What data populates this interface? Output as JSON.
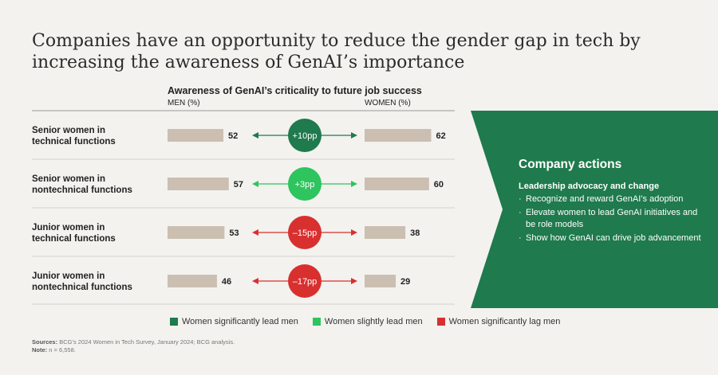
{
  "title": "Companies have an opportunity to reduce the gender gap in tech by increasing the awareness of GenAI’s importance",
  "chart_data": {
    "type": "bar",
    "title": "Awareness of GenAI’s criticality to future job success",
    "men_label": "MEN (%)",
    "women_label": "WOMEN (%)",
    "categories": [
      "Senior women in technical functions",
      "Senior women in nontechnical functions",
      "Junior women in technical functions",
      "Junior women in nontechnical functions"
    ],
    "series": [
      {
        "name": "MEN (%)",
        "values": [
          52,
          57,
          53,
          46
        ]
      },
      {
        "name": "WOMEN (%)",
        "values": [
          62,
          60,
          38,
          29
        ]
      }
    ],
    "gaps": [
      {
        "label": "+10pp",
        "status": "lead"
      },
      {
        "label": "+3pp",
        "status": "slight"
      },
      {
        "label": "–15pp",
        "status": "lag"
      },
      {
        "label": "–17pp",
        "status": "lag"
      }
    ],
    "bar_color": "#cbbfb2",
    "status_colors": {
      "lead": "#1f7a4d",
      "slight": "#2ec45e",
      "lag": "#d8302f"
    },
    "legend": [
      {
        "label": "Women significantly lead men",
        "status": "lead"
      },
      {
        "label": "Women slightly lead men",
        "status": "slight"
      },
      {
        "label": "Women significantly lag men",
        "status": "lag"
      }
    ]
  },
  "row_labels": [
    {
      "line1": "Senior women in",
      "line2": "technical functions"
    },
    {
      "line1": "Senior women in",
      "line2": "nontechnical functions"
    },
    {
      "line1": "Junior women in",
      "line2": "technical functions"
    },
    {
      "line1": "Junior women in",
      "line2": "nontechnical functions"
    }
  ],
  "panel": {
    "title": "Company actions",
    "subtitle": "Leadership advocacy and change",
    "items": [
      "Recognize and reward GenAI’s adoption",
      "Elevate women to lead GenAI initiatives and be role models",
      "Show how GenAI can drive job advancement"
    ],
    "color": "#1f7a4d"
  },
  "sources": {
    "sources_label": "Sources:",
    "sources_text": " BCG’s 2024 Women in Tech Survey, January 2024; BCG analysis.",
    "note_label": "Note:",
    "note_text": " n = 6,558."
  }
}
